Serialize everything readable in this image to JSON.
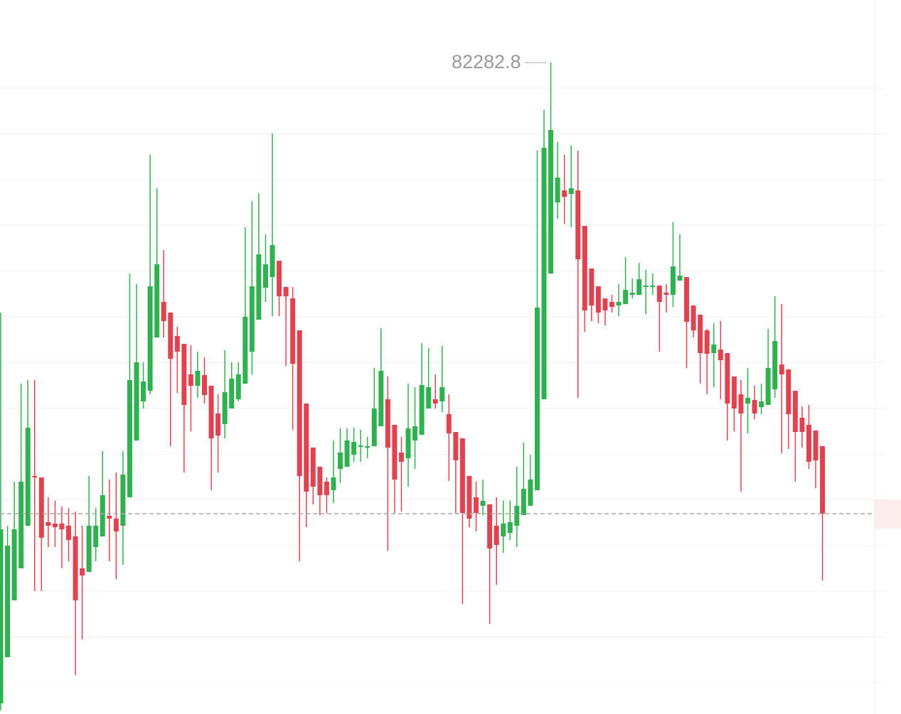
{
  "chart_data": {
    "type": "candlestick",
    "up_color": "#2fb150",
    "down_color": "#e0434f",
    "ylim": [
      80449,
      82459
    ],
    "yticks": [
      82211,
      82082,
      81953,
      81825,
      81696,
      81567,
      81438,
      81310,
      81181,
      81052,
      80923,
      80795,
      80666,
      80537
    ],
    "grid": true,
    "open": [
      80479,
      80609,
      80769,
      80859,
      80979,
      81119,
      81115,
      80989,
      80985,
      80985,
      80979,
      80949,
      80859,
      80849,
      80919,
      80949,
      81007,
      80999,
      80979,
      81059,
      81219,
      81329,
      81359,
      81509,
      81609,
      81579,
      81513,
      81491,
      81405,
      81373,
      81403,
      81373,
      81295,
      81265,
      81309,
      81335,
      81379,
      81469,
      81559,
      81649,
      81679,
      81725,
      81651,
      81619,
      81529,
      81323,
      81199,
      81145,
      81103,
      81079,
      81139,
      81145,
      81179,
      81201,
      81199,
      81203,
      81259,
      81335,
      81263,
      81185,
      81169,
      81219,
      81235,
      81309,
      81335,
      81329,
      81293,
      81243,
      81225,
      81119,
      81059,
      81035,
      81039,
      80979,
      80949,
      80959,
      80979,
      81009,
      81035,
      81079,
      81335,
      81689,
      81889,
      81923,
      81913,
      81923,
      81823,
      81703,
      81653,
      81619,
      81609,
      81599,
      81603,
      81629,
      81629,
      81651,
      81651,
      81655,
      81635,
      81629,
      81669,
      81679,
      81599,
      81573,
      81529,
      81465,
      81475,
      81465,
      81399,
      81349,
      81323,
      81333,
      81313,
      81319,
      81363,
      81433,
      81419,
      81359,
      81283,
      81263,
      81247,
      81203
    ],
    "high": [
      81579,
      80979,
      81103,
      81379,
      81389,
      81389,
      81115,
      81059,
      81049,
      81033,
      81029,
      81019,
      80979,
      81119,
      81029,
      81189,
      81109,
      81129,
      81189,
      81689,
      81659,
      81439,
      82023,
      81929,
      81755,
      81579,
      81539,
      81491,
      81487,
      81469,
      81453,
      81373,
      81349,
      81473,
      81439,
      81439,
      81819,
      81893,
      81915,
      81799,
      82083,
      81725,
      81651,
      81651,
      81529,
      81323,
      81199,
      81145,
      81115,
      81219,
      81253,
      81253,
      81255,
      81249,
      81229,
      81423,
      81535,
      81399,
      81263,
      81229,
      81379,
      81369,
      81493,
      81479,
      81405,
      81485,
      81349,
      81243,
      81225,
      81119,
      81103,
      81109,
      81039,
      81059,
      81049,
      81049,
      81145,
      81213,
      81179,
      82035,
      82149,
      82282.8,
      82059,
      82023,
      82049,
      82035,
      81823,
      81703,
      81653,
      81619,
      81629,
      81659,
      81735,
      81675,
      81719,
      81699,
      81689,
      81655,
      81659,
      81833,
      81799,
      81679,
      81599,
      81573,
      81533,
      81549,
      81555,
      81465,
      81399,
      81389,
      81423,
      81373,
      81379,
      81533,
      81625,
      81603,
      81419,
      81359,
      81315,
      81319,
      81247,
      81203
    ],
    "low": [
      80459,
      80609,
      80769,
      80859,
      80979,
      80795,
      80795,
      80919,
      80919,
      80859,
      80879,
      80559,
      80659,
      80849,
      80879,
      80949,
      80879,
      80829,
      80869,
      81059,
      81219,
      81309,
      81349,
      81509,
      81509,
      81203,
      81353,
      81129,
      81245,
      81339,
      81323,
      81079,
      81129,
      81225,
      81309,
      81329,
      81379,
      81405,
      81559,
      81609,
      81569,
      81569,
      81429,
      81249,
      80879,
      80975,
      81039,
      81009,
      81015,
      81043,
      81099,
      81145,
      81159,
      81159,
      81169,
      81203,
      81259,
      80909,
      81015,
      81019,
      81089,
      81139,
      81235,
      81309,
      81309,
      81299,
      81105,
      81015,
      80759,
      80975,
      80963,
      81009,
      80703,
      80813,
      80903,
      80939,
      80919,
      81009,
      81035,
      81079,
      81335,
      81689,
      81843,
      81829,
      81819,
      81339,
      81525,
      81555,
      81549,
      81543,
      81579,
      81569,
      81603,
      81619,
      81629,
      81575,
      81629,
      81469,
      81579,
      81595,
      81669,
      81423,
      81509,
      81379,
      81349,
      81369,
      81335,
      81219,
      81245,
      81075,
      81239,
      81279,
      81293,
      81319,
      81339,
      81183,
      81195,
      81103,
      81199,
      81139,
      81085,
      80825
    ],
    "close": [
      80969,
      80923,
      80969,
      81103,
      81255,
      81115,
      80945,
      80979,
      80975,
      80969,
      80939,
      80769,
      80839,
      80979,
      80979,
      81065,
      80999,
      80963,
      81123,
      81389,
      81439,
      81385,
      81653,
      81715,
      81555,
      81449,
      81469,
      81319,
      81373,
      81415,
      81347,
      81225,
      81233,
      81355,
      81393,
      81405,
      81567,
      81653,
      81743,
      81715,
      81769,
      81625,
      81625,
      81435,
      81119,
      81075,
      81089,
      81065,
      81065,
      81115,
      81185,
      81219,
      81215,
      81205,
      81203,
      81309,
      81415,
      81199,
      81109,
      81159,
      81253,
      81259,
      81375,
      81369,
      81323,
      81369,
      81239,
      81163,
      81015,
      80999,
      81015,
      81049,
      80915,
      80925,
      80985,
      80989,
      81035,
      81083,
      81109,
      81593,
      82043,
      82093,
      81959,
      81905,
      81929,
      81729,
      81585,
      81599,
      81579,
      81585,
      81595,
      81609,
      81643,
      81635,
      81673,
      81655,
      81655,
      81609,
      81629,
      81709,
      81683,
      81553,
      81529,
      81465,
      81463,
      81489,
      81445,
      81323,
      81309,
      81295,
      81339,
      81295,
      81329,
      81423,
      81499,
      81405,
      81293,
      81243,
      81243,
      81159,
      81163,
      81013
    ]
  }
}
